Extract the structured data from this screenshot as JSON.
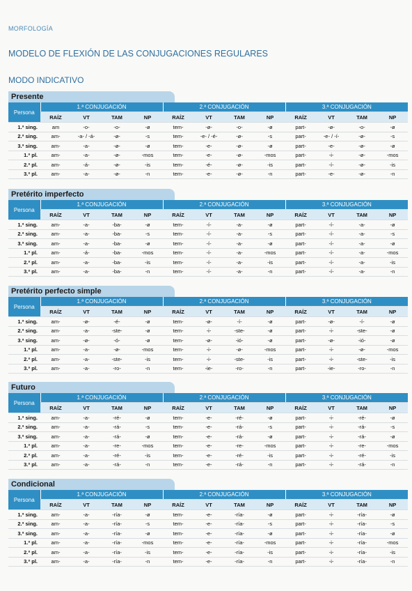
{
  "header": {
    "section": "MORFOLOGÍA",
    "title": "MODELO DE FLEXIÓN DE LAS CONJUGACIONES REGULARES",
    "subtitle": "MODO INDICATIVO"
  },
  "persona_label": "Persona",
  "conjugations": [
    "1.ª CONJUGACIÓN",
    "2.ª CONJUGACIÓN",
    "3.ª CONJUGACIÓN"
  ],
  "columns": [
    "RAÍZ",
    "VT",
    "TAM",
    "NP"
  ],
  "persons": [
    "1.ª sing.",
    "2.ª sing.",
    "3.ª sing.",
    "1.ª pl.",
    "2.ª pl.",
    "3.ª pl."
  ],
  "tables": [
    {
      "name": "Presente",
      "rows": [
        [
          "am",
          "-o-",
          "-o-",
          "-ø",
          "tem-",
          "-ø-",
          "-o-",
          "-ø",
          "part-",
          "-ø-",
          "-o-",
          "-ø"
        ],
        [
          "am-",
          "-a- / -á-",
          "-ø-",
          "-s",
          "tem-",
          "-e- / -é-",
          "-ø-",
          "-s",
          "part-",
          "-e- / -í-",
          "-ø-",
          "-s"
        ],
        [
          "am-",
          "-a-",
          "-ø-",
          "-ø",
          "tem-",
          "-e-",
          "-ø-",
          "-ø",
          "part-",
          "-e-",
          "-ø-",
          "-ø"
        ],
        [
          "am-",
          "-a-",
          "-ø-",
          "-mos",
          "tem-",
          "-e-",
          "-ø-",
          "-mos",
          "part-",
          "-i-",
          "-ø-",
          "-mos"
        ],
        [
          "am-",
          "-á-",
          "-ø-",
          "-is",
          "tem-",
          "-é-",
          "-ø-",
          "-is",
          "part-",
          "-í-",
          "-ø-",
          "-is"
        ],
        [
          "am-",
          "-a-",
          "-ø-",
          "-n",
          "tem-",
          "-e-",
          "-ø-",
          "-n",
          "part-",
          "-e-",
          "-ø-",
          "-n"
        ]
      ]
    },
    {
      "name": "Pretérito imperfecto",
      "rows": [
        [
          "am-",
          "-a-",
          "-ba-",
          "-ø",
          "tem-",
          "-í-",
          "-a-",
          "-ø",
          "part-",
          "-í-",
          "-a-",
          "-ø"
        ],
        [
          "am-",
          "-a-",
          "-ba-",
          "-s",
          "tem-",
          "-í-",
          "-a-",
          "-s",
          "part-",
          "-í-",
          "-a-",
          "-s"
        ],
        [
          "am-",
          "-a-",
          "-ba-",
          "-ø",
          "tem-",
          "-í-",
          "-a-",
          "-ø",
          "part-",
          "-í-",
          "-a-",
          "-ø"
        ],
        [
          "am-",
          "-á-",
          "-ba-",
          "-mos",
          "tem-",
          "-í-",
          "-a-",
          "-mos",
          "part-",
          "-í-",
          "-a-",
          "-mos"
        ],
        [
          "am-",
          "-a-",
          "-ba-",
          "-is",
          "tem-",
          "-í-",
          "-a-",
          "-is",
          "part-",
          "-í-",
          "-a-",
          "-is"
        ],
        [
          "am-",
          "-a-",
          "-ba-",
          "-n",
          "tem-",
          "-í-",
          "-a-",
          "-n",
          "part-",
          "-í-",
          "-a-",
          "-n"
        ]
      ]
    },
    {
      "name": "Pretérito perfecto simple",
      "rows": [
        [
          "am-",
          "-ø-",
          "-é-",
          "-ø",
          "tem-",
          "-ø-",
          "-í-",
          "-ø",
          "part-",
          "-ø-",
          "-í-",
          "-ø"
        ],
        [
          "am-",
          "-a-",
          "-ste-",
          "-ø",
          "tem-",
          "-i-",
          "-ste-",
          "-ø",
          "part-",
          "-i-",
          "-ste-",
          "-ø"
        ],
        [
          "am-",
          "-ø-",
          "-ó-",
          "-ø",
          "tem-",
          "-ø-",
          "-ió-",
          "-ø",
          "part-",
          "-ø-",
          "-ió-",
          "-ø"
        ],
        [
          "am-",
          "-a-",
          "-ø-",
          "-mos",
          "tem-",
          "-i-",
          "-ø-",
          "-mos",
          "part-",
          "-i-",
          "-ø-",
          "-mos"
        ],
        [
          "am-",
          "-a-",
          "-ste-",
          "-is",
          "tem-",
          "-i-",
          "-ste-",
          "-is",
          "part-",
          "-i-",
          "-ste-",
          "-is"
        ],
        [
          "am-",
          "-a-",
          "-ro-",
          "-n",
          "tem-",
          "-ie-",
          "-ro-",
          "-n",
          "part-",
          "-ie-",
          "-ro-",
          "-n"
        ]
      ]
    },
    {
      "name": "Futuro",
      "rows": [
        [
          "am-",
          "-a-",
          "-ré-",
          "-ø",
          "tem-",
          "-e-",
          "-ré-",
          "-ø",
          "part-",
          "-i-",
          "-ré-",
          "-ø"
        ],
        [
          "am-",
          "-a-",
          "-rá-",
          "-s",
          "tem-",
          "-e-",
          "-rá-",
          "-s",
          "part-",
          "-i-",
          "-rá-",
          "-s"
        ],
        [
          "am-",
          "-a-",
          "-rá-",
          "-ø",
          "tem-",
          "-e-",
          "-rá-",
          "-ø",
          "part-",
          "-i-",
          "-rá-",
          "-ø"
        ],
        [
          "am-",
          "-a-",
          "-re-",
          "-mos",
          "tem-",
          "-e-",
          "-re-",
          "-mos",
          "part-",
          "-i-",
          "-re-",
          "-mos"
        ],
        [
          "am-",
          "-a-",
          "-ré-",
          "-is",
          "tem-",
          "-e-",
          "-ré-",
          "-is",
          "part-",
          "-i-",
          "-ré-",
          "-is"
        ],
        [
          "am-",
          "-a-",
          "-rá-",
          "-n",
          "tem-",
          "-e-",
          "-rá-",
          "-n",
          "part-",
          "-i-",
          "-rá-",
          "-n"
        ]
      ]
    },
    {
      "name": "Condicional",
      "rows": [
        [
          "am-",
          "-a-",
          "-ría-",
          "-ø",
          "tem-",
          "-e-",
          "-ría-",
          "-ø",
          "part-",
          "-i-",
          "-ría-",
          "-ø"
        ],
        [
          "am-",
          "-a-",
          "-ría-",
          "-s",
          "tem-",
          "-e-",
          "-ría-",
          "-s",
          "part-",
          "-i-",
          "-ría-",
          "-s"
        ],
        [
          "am-",
          "-a-",
          "-ría-",
          "-ø",
          "tem-",
          "-e-",
          "-ría-",
          "-ø",
          "part-",
          "-i-",
          "-ría-",
          "-ø"
        ],
        [
          "am-",
          "-a-",
          "-ría-",
          "-mos",
          "tem-",
          "-e-",
          "-ría-",
          "-mos",
          "part-",
          "-i-",
          "-ría-",
          "-mos"
        ],
        [
          "am-",
          "-a-",
          "-ría-",
          "-is",
          "tem-",
          "-e-",
          "-ría-",
          "-is",
          "part-",
          "-i-",
          "-ría-",
          "-is"
        ],
        [
          "am-",
          "-a-",
          "-ría-",
          "-n",
          "tem-",
          "-e-",
          "-ría-",
          "-n",
          "part-",
          "-i-",
          "-ría-",
          "-n"
        ]
      ]
    }
  ]
}
